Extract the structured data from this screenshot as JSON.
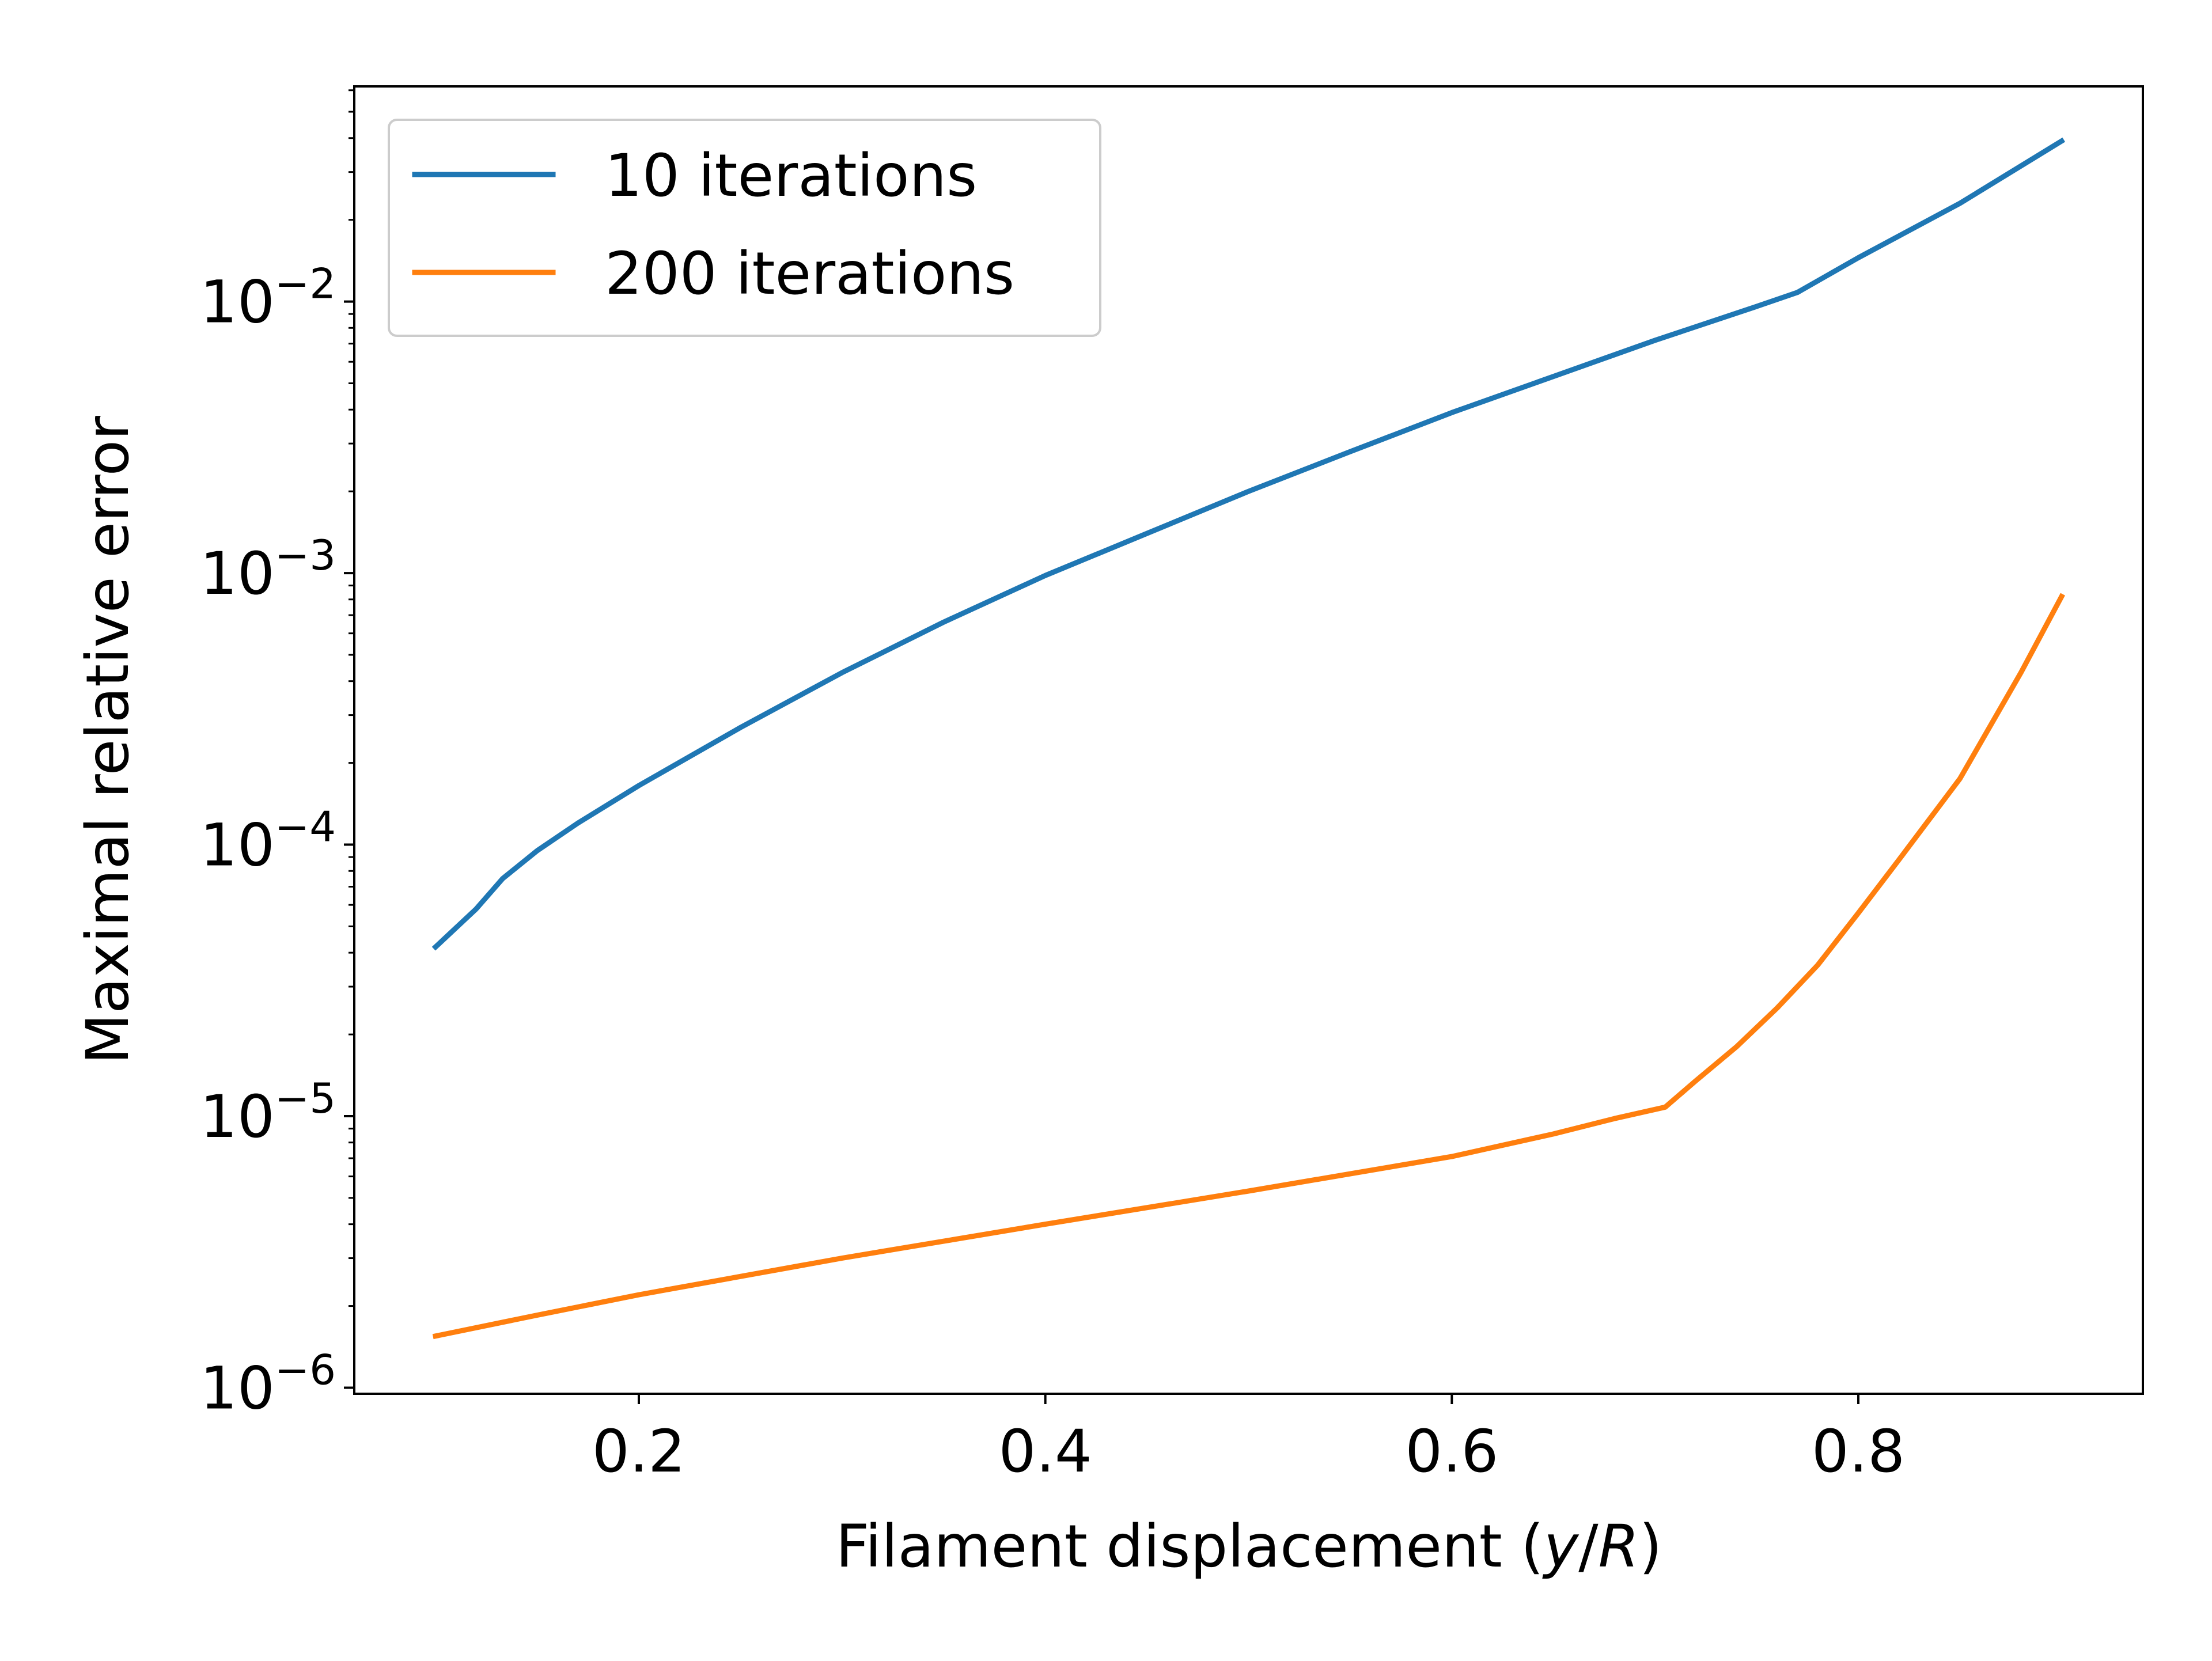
{
  "chart_data": {
    "type": "line",
    "title": "",
    "xlabel": {
      "prefix": "Filament displacement (",
      "var1": "y",
      "sep": "/",
      "var2": "R",
      "suffix": ")"
    },
    "ylabel": "Maximal relative error",
    "yscale": "log",
    "xlim": [
      0.06,
      0.94
    ],
    "ylim": [
      9.5e-07,
      0.062
    ],
    "xticks": [
      {
        "value": 0.2,
        "label": "0.2"
      },
      {
        "value": 0.4,
        "label": "0.4"
      },
      {
        "value": 0.6,
        "label": "0.6"
      },
      {
        "value": 0.8,
        "label": "0.8"
      }
    ],
    "yticks": [
      {
        "value": 1e-06,
        "base": "10",
        "exp": "−6"
      },
      {
        "value": 1e-05,
        "base": "10",
        "exp": "−5"
      },
      {
        "value": 0.0001,
        "base": "10",
        "exp": "−4"
      },
      {
        "value": 0.001,
        "base": "10",
        "exp": "−3"
      },
      {
        "value": 0.01,
        "base": "10",
        "exp": "−2"
      }
    ],
    "grid": false,
    "legend": {
      "position": "upper-left"
    },
    "series": [
      {
        "name": "10 iterations",
        "color": "#1f77b4",
        "x": [
          0.1,
          0.12,
          0.133,
          0.15,
          0.17,
          0.2,
          0.25,
          0.3,
          0.35,
          0.4,
          0.45,
          0.5,
          0.55,
          0.6,
          0.65,
          0.7,
          0.75,
          0.77,
          0.8,
          0.85,
          0.9
        ],
        "y": [
          4.2e-05,
          5.8e-05,
          7.5e-05,
          9.5e-05,
          0.00012,
          0.000165,
          0.00027,
          0.00043,
          0.00066,
          0.00098,
          0.0014,
          0.002,
          0.0028,
          0.0039,
          0.0053,
          0.0072,
          0.0096,
          0.0108,
          0.0145,
          0.023,
          0.039
        ]
      },
      {
        "name": "200 iterations",
        "color": "#ff7f0e",
        "x": [
          0.1,
          0.15,
          0.2,
          0.3,
          0.4,
          0.5,
          0.6,
          0.65,
          0.68,
          0.705,
          0.72,
          0.74,
          0.76,
          0.78,
          0.8,
          0.82,
          0.85,
          0.88,
          0.9
        ],
        "y": [
          1.55e-06,
          1.85e-06,
          2.2e-06,
          3e-06,
          4e-06,
          5.3e-06,
          7.1e-06,
          8.6e-06,
          9.8e-06,
          1.08e-05,
          1.35e-05,
          1.8e-05,
          2.5e-05,
          3.6e-05,
          5.6e-05,
          8.8e-05,
          0.000175,
          0.00043,
          0.00082
        ]
      }
    ]
  }
}
